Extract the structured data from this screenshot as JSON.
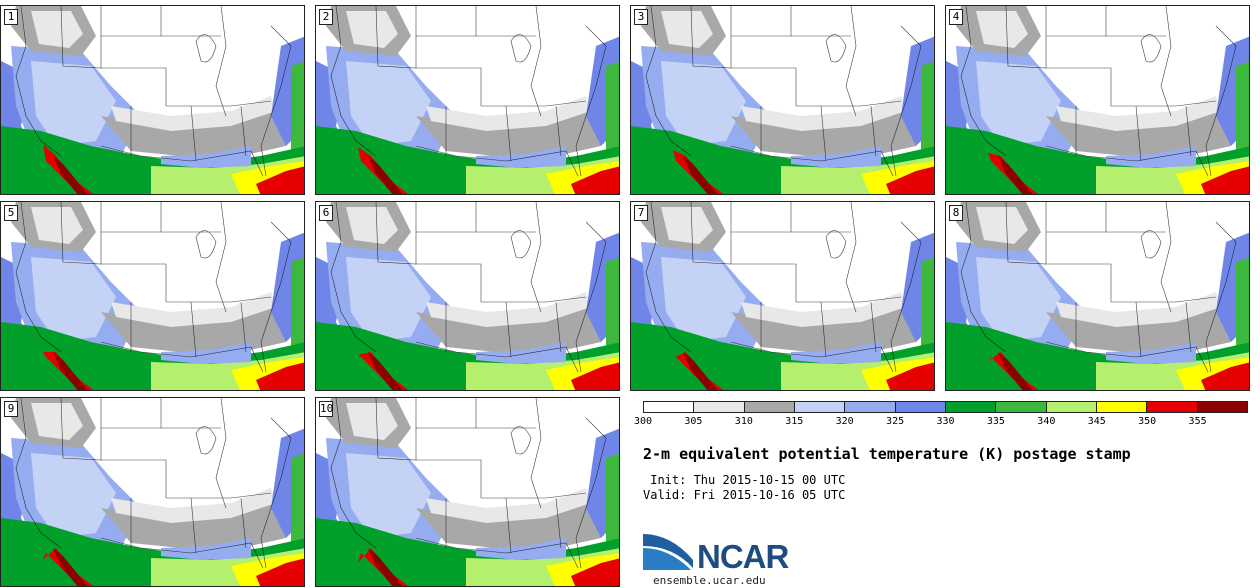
{
  "panels": [
    {
      "label": "1"
    },
    {
      "label": "2"
    },
    {
      "label": "3"
    },
    {
      "label": "4"
    },
    {
      "label": "5"
    },
    {
      "label": "6"
    },
    {
      "label": "7"
    },
    {
      "label": "8"
    },
    {
      "label": "9"
    },
    {
      "label": "10"
    }
  ],
  "colorbar": {
    "ticks": [
      "300",
      "305",
      "310",
      "315",
      "320",
      "325",
      "330",
      "335",
      "340",
      "345",
      "350",
      "355"
    ],
    "colors": [
      "#ffffff",
      "#e8e8e8",
      "#a8a8a8",
      "#c4d3f5",
      "#96acf0",
      "#6f86e8",
      "#00a02a",
      "#3cb83c",
      "#b4f06e",
      "#ffff00",
      "#e60000",
      "#8c0000"
    ]
  },
  "title": "2-m equivalent potential temperature (K) postage stamp",
  "init": " Init: Thu 2015-10-15 00 UTC",
  "valid": "Valid: Fri 2015-10-16 05 UTC",
  "logo": {
    "text": "NCAR",
    "url": "ensemble.ucar.edu",
    "color": "#1f4c80"
  }
}
